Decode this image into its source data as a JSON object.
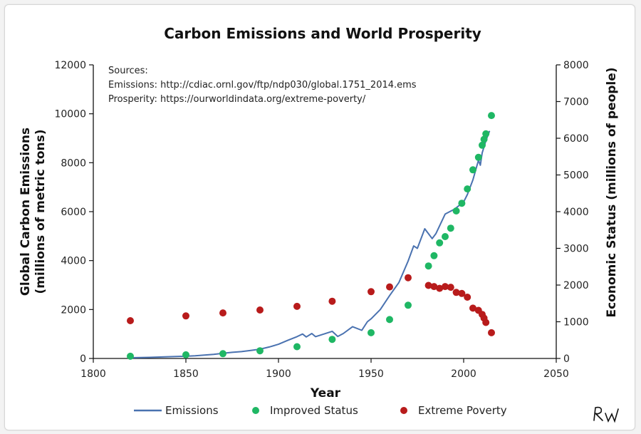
{
  "chart_data": {
    "type": "line",
    "title": "Carbon Emissions and World Prosperity",
    "xlabel": "Year",
    "ylabel_left": "Global Carbon Emissions (millions of metric tons)",
    "ylabel_left_lines": [
      "Global Carbon Emissions",
      "(millions of metric tons)"
    ],
    "ylabel_right": "Economic Status (millions of people)",
    "xlim": [
      1800,
      2050
    ],
    "ylim_left": [
      0,
      12000
    ],
    "ylim_right": [
      0,
      8000
    ],
    "x_ticks": [
      1800,
      1850,
      1900,
      1950,
      2000,
      2050
    ],
    "y_left_ticks": [
      0,
      2000,
      4000,
      6000,
      8000,
      10000,
      12000
    ],
    "y_right_ticks": [
      0,
      1000,
      2000,
      3000,
      4000,
      5000,
      6000,
      7000,
      8000
    ],
    "sources": [
      "Sources:",
      "Emissions: http://cdiac.ornl.gov/ftp/ndp030/global.1751_2014.ems",
      "Prosperity: https://ourworldindata.org/extreme-poverty/"
    ],
    "legend_position": "bottom",
    "grid": false,
    "signature": "RW",
    "series": [
      {
        "name": "Emissions",
        "kind": "line",
        "axis": "left",
        "color": "#4a72b0",
        "x": [
          1820,
          1830,
          1840,
          1850,
          1855,
          1860,
          1865,
          1870,
          1875,
          1880,
          1885,
          1890,
          1895,
          1900,
          1905,
          1910,
          1913,
          1915,
          1918,
          1920,
          1925,
          1929,
          1932,
          1935,
          1940,
          1945,
          1948,
          1950,
          1955,
          1960,
          1965,
          1970,
          1973,
          1975,
          1979,
          1980,
          1983,
          1985,
          1990,
          1995,
          2000,
          2002,
          2005,
          2008,
          2009,
          2010,
          2012,
          2014
        ],
        "y": [
          30,
          45,
          70,
          90,
          110,
          140,
          170,
          210,
          250,
          280,
          330,
          380,
          470,
          580,
          740,
          890,
          1000,
          880,
          1020,
          890,
          1010,
          1110,
          900,
          1020,
          1300,
          1150,
          1500,
          1620,
          2000,
          2570,
          3100,
          3980,
          4600,
          4500,
          5300,
          5200,
          4900,
          5100,
          5900,
          6100,
          6400,
          6700,
          7300,
          8100,
          7900,
          8400,
          8900,
          9300
        ]
      },
      {
        "name": "Improved Status",
        "kind": "scatter",
        "axis": "right",
        "color": "#1fb764",
        "x": [
          1820,
          1850,
          1870,
          1890,
          1910,
          1929,
          1950,
          1960,
          1970,
          1981,
          1984,
          1987,
          1990,
          1993,
          1996,
          1999,
          2002,
          2005,
          2008,
          2010,
          2011,
          2012,
          2015
        ],
        "y": [
          60,
          100,
          130,
          210,
          320,
          520,
          700,
          1060,
          1450,
          2520,
          2800,
          3150,
          3320,
          3550,
          4020,
          4230,
          4620,
          5140,
          5480,
          5810,
          5970,
          6120,
          6620
        ]
      },
      {
        "name": "Extreme Poverty",
        "kind": "scatter",
        "axis": "right",
        "color": "#b81b1b",
        "x": [
          1820,
          1850,
          1870,
          1890,
          1910,
          1929,
          1950,
          1960,
          1970,
          1981,
          1984,
          1987,
          1990,
          1993,
          1996,
          1999,
          2002,
          2005,
          2008,
          2010,
          2011,
          2012,
          2015
        ],
        "y": [
          1030,
          1160,
          1240,
          1320,
          1420,
          1560,
          1820,
          1950,
          2200,
          1990,
          1960,
          1910,
          1960,
          1940,
          1800,
          1770,
          1670,
          1370,
          1310,
          1200,
          1100,
          980,
          700
        ]
      }
    ]
  }
}
